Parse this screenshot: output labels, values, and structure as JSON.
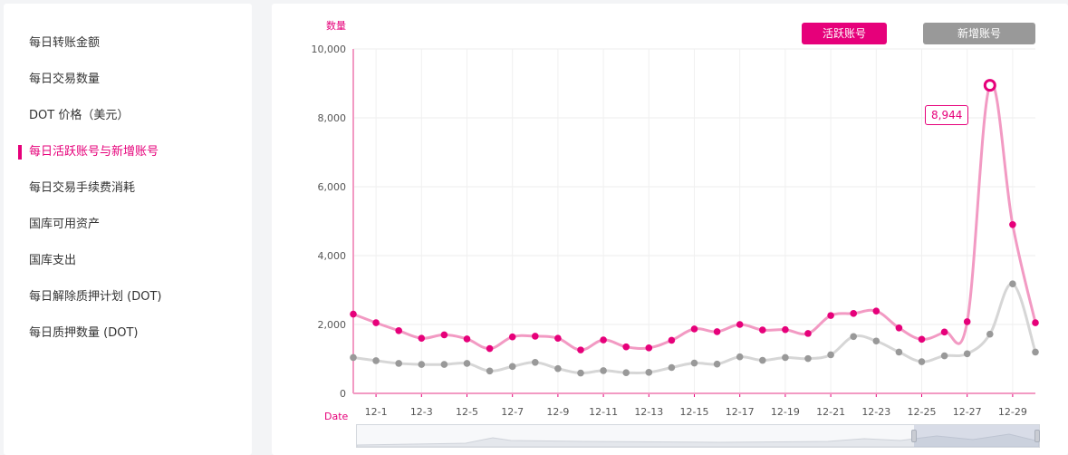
{
  "sidebar": {
    "items": [
      {
        "label": "每日转账金额",
        "active": false
      },
      {
        "label": "每日交易数量",
        "active": false
      },
      {
        "label": "DOT 价格（美元）",
        "active": false
      },
      {
        "label": "每日活跃账号与新增账号",
        "active": true
      },
      {
        "label": "每日交易手续费消耗",
        "active": false
      },
      {
        "label": "国库可用资产",
        "active": false
      },
      {
        "label": "国库支出",
        "active": false
      },
      {
        "label": "每日解除质押计划 (DOT)",
        "active": false
      },
      {
        "label": "每日质押数量 (DOT)",
        "active": false
      }
    ]
  },
  "legend": {
    "active_label": "活跃账号",
    "new_label": "新增账号",
    "active_color": "#e6007a",
    "new_color": "#999999"
  },
  "tooltip": {
    "value": "8,944"
  },
  "chart_data": {
    "type": "line",
    "ylabel": "数量",
    "xlabel": "Date",
    "ylim": [
      0,
      10000
    ],
    "y_ticks": [
      "0",
      "2,000",
      "4,000",
      "6,000",
      "8,000",
      "10,000"
    ],
    "x": [
      "11-30",
      "12-1",
      "12-2",
      "12-3",
      "12-4",
      "12-5",
      "12-6",
      "12-7",
      "12-8",
      "12-9",
      "12-10",
      "12-11",
      "12-12",
      "12-13",
      "12-14",
      "12-15",
      "12-16",
      "12-17",
      "12-18",
      "12-19",
      "12-20",
      "12-21",
      "12-22",
      "12-23",
      "12-24",
      "12-25",
      "12-26",
      "12-27",
      "12-28",
      "12-29",
      "12-30"
    ],
    "x_tick_labels": [
      "12-1",
      "12-3",
      "12-5",
      "12-7",
      "12-9",
      "12-11",
      "12-13",
      "12-15",
      "12-17",
      "12-19",
      "12-21",
      "12-23",
      "12-25",
      "12-27",
      "12-29"
    ],
    "series": [
      {
        "name": "活跃账号",
        "color": "#e6007a",
        "values": [
          2300,
          2050,
          1820,
          1600,
          1700,
          1580,
          1300,
          1640,
          1660,
          1600,
          1260,
          1550,
          1350,
          1320,
          1540,
          1870,
          1790,
          2000,
          1840,
          1850,
          1740,
          2260,
          2320,
          2390,
          1900,
          1570,
          1780,
          2080,
          8944,
          4900,
          2050
        ]
      },
      {
        "name": "新增账号",
        "color": "#999999",
        "values": [
          1040,
          950,
          870,
          840,
          840,
          870,
          650,
          780,
          900,
          720,
          590,
          660,
          600,
          610,
          750,
          880,
          850,
          1060,
          960,
          1040,
          1010,
          1120,
          1650,
          1520,
          1200,
          920,
          1090,
          1150,
          1720,
          3180,
          1200
        ]
      }
    ],
    "highlight": {
      "series": "活跃账号",
      "x": "12-28",
      "value": 8944
    }
  }
}
